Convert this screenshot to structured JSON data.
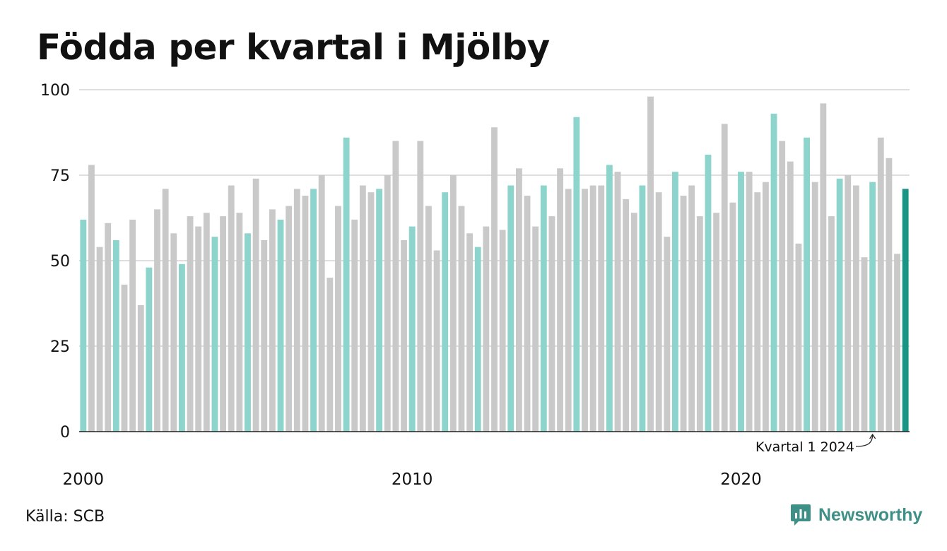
{
  "title": "Födda per kvartal i Mjölby",
  "source": "Källa: SCB",
  "brand": "Newsworthy",
  "colors": {
    "q1": "#8dd4cc",
    "other": "#c9c9c9",
    "latest": "#1a9485",
    "grid": "#dedede",
    "axis": "#222222",
    "brand": "#3e8f85"
  },
  "chart_data": {
    "type": "bar",
    "title": "Födda per kvartal i Mjölby",
    "xlabel": "",
    "ylabel": "",
    "ylim": [
      0,
      100
    ],
    "yticks": [
      0,
      25,
      50,
      75,
      100
    ],
    "xtick_labels": [
      {
        "label": "2000",
        "year": 2000
      },
      {
        "label": "2010",
        "year": 2010
      },
      {
        "label": "2020",
        "year": 2020
      }
    ],
    "grid": true,
    "start": "2000 Q1",
    "annotation": {
      "text": "Kvartal 1 2024",
      "target": "2024 Q1"
    },
    "values": [
      62,
      78,
      54,
      61,
      56,
      43,
      62,
      37,
      48,
      65,
      71,
      58,
      49,
      63,
      60,
      64,
      57,
      63,
      72,
      64,
      58,
      74,
      56,
      65,
      62,
      66,
      71,
      69,
      71,
      75,
      45,
      66,
      86,
      62,
      72,
      70,
      71,
      75,
      85,
      56,
      60,
      85,
      66,
      53,
      70,
      75,
      66,
      58,
      54,
      60,
      89,
      59,
      72,
      77,
      69,
      60,
      72,
      63,
      77,
      71,
      92,
      71,
      72,
      72,
      78,
      76,
      68,
      64,
      72,
      98,
      70,
      57,
      76,
      69,
      72,
      63,
      81,
      64,
      90,
      67,
      76,
      76,
      70,
      73,
      93,
      85,
      79,
      55,
      86,
      73,
      96,
      63,
      74,
      75,
      72,
      51,
      73,
      86,
      80,
      52,
      71
    ]
  }
}
